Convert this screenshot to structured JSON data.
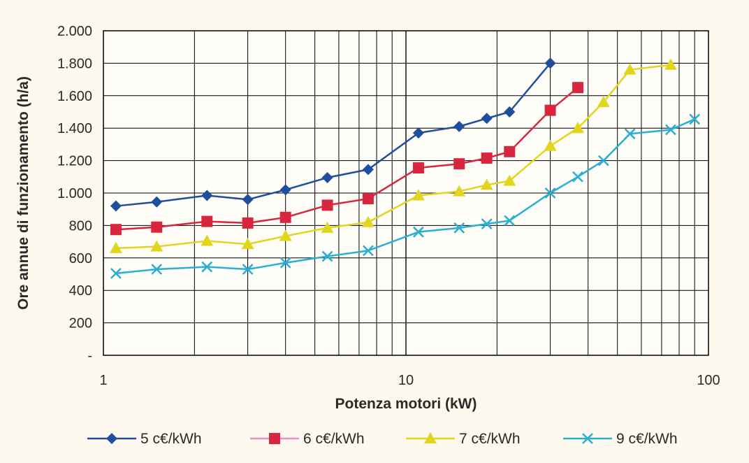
{
  "chart_data": {
    "type": "line",
    "xscale": "log",
    "xlim": [
      1,
      100
    ],
    "ylim": [
      0,
      2000
    ],
    "xlabel": "Potenza motori (kW)",
    "ylabel": "Ore annue di funzionamento (h/a)",
    "x_ticks": [
      "1",
      "10",
      "100"
    ],
    "y_ticks": [
      "-",
      "200",
      "400",
      "600",
      "800",
      "1.000",
      "1.200",
      "1.400",
      "1.600",
      "1.800",
      "2.000"
    ],
    "grid": true,
    "legend_position": "bottom",
    "series": [
      {
        "name": "5 c€/kWh",
        "color": "#1f4e9c",
        "marker": "diamond",
        "x": [
          1.1,
          1.5,
          2.2,
          3,
          4,
          5.5,
          7.5,
          11,
          15,
          18.5,
          22,
          30
        ],
        "y": [
          920,
          945,
          985,
          960,
          1020,
          1095,
          1145,
          1370,
          1410,
          1460,
          1500,
          1800
        ]
      },
      {
        "name": "6 c€/kWh",
        "color": "#d9263f",
        "line_color": "#e58fc8",
        "marker": "square",
        "x": [
          1.1,
          1.5,
          2.2,
          3,
          4,
          5.5,
          7.5,
          11,
          15,
          18.5,
          22,
          30,
          37
        ],
        "y": [
          775,
          790,
          825,
          815,
          850,
          925,
          965,
          1155,
          1180,
          1215,
          1255,
          1510,
          1650
        ]
      },
      {
        "name": "7 c€/kWh",
        "color": "#e2d51d",
        "marker": "triangle",
        "x": [
          1.1,
          1.5,
          2.2,
          3,
          4,
          5.5,
          7.5,
          11,
          15,
          18.5,
          22,
          30,
          37,
          45,
          55,
          75
        ],
        "y": [
          660,
          670,
          705,
          685,
          735,
          785,
          820,
          985,
          1010,
          1050,
          1075,
          1290,
          1400,
          1560,
          1760,
          1790
        ]
      },
      {
        "name": "9 c€/kWh",
        "color": "#2aaed1",
        "marker": "cross",
        "x": [
          1.1,
          1.5,
          2.2,
          3,
          4,
          5.5,
          7.5,
          11,
          15,
          18.5,
          22,
          30,
          37,
          45,
          55,
          75,
          90
        ],
        "y": [
          505,
          530,
          545,
          530,
          570,
          610,
          645,
          760,
          785,
          810,
          830,
          1000,
          1100,
          1200,
          1365,
          1390,
          1455
        ]
      }
    ]
  }
}
